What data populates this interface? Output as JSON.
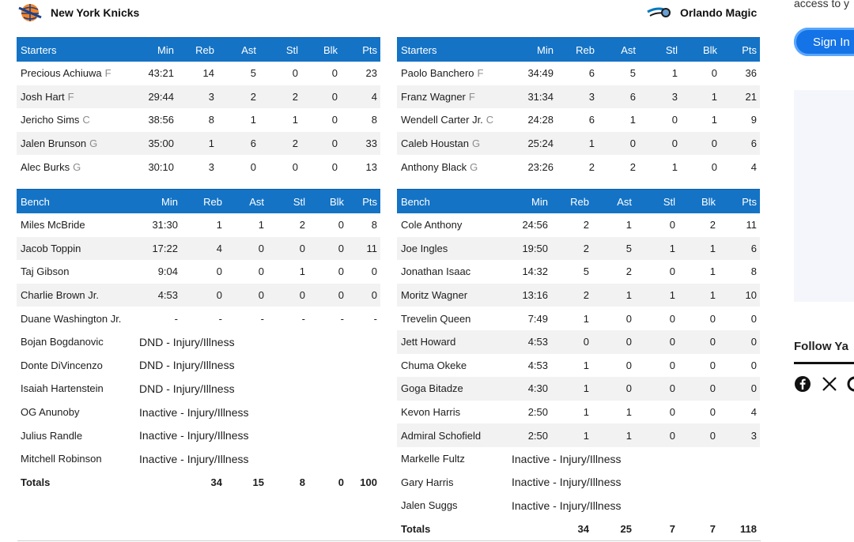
{
  "away": {
    "team": "New York Knicks",
    "starters_header": "Starters",
    "bench_header": "Bench",
    "columns": [
      "Min",
      "Reb",
      "Ast",
      "Stl",
      "Blk",
      "Pts"
    ],
    "starters": [
      {
        "name": "Precious Achiuwa",
        "pos": "F",
        "min": "43:21",
        "reb": "14",
        "ast": "5",
        "stl": "0",
        "blk": "0",
        "pts": "23"
      },
      {
        "name": "Josh Hart",
        "pos": "F",
        "min": "29:44",
        "reb": "3",
        "ast": "2",
        "stl": "2",
        "blk": "0",
        "pts": "4"
      },
      {
        "name": "Jericho Sims",
        "pos": "C",
        "min": "38:56",
        "reb": "8",
        "ast": "1",
        "stl": "1",
        "blk": "0",
        "pts": "8"
      },
      {
        "name": "Jalen Brunson",
        "pos": "G",
        "min": "35:00",
        "reb": "1",
        "ast": "6",
        "stl": "2",
        "blk": "0",
        "pts": "33"
      },
      {
        "name": "Alec Burks",
        "pos": "G",
        "min": "30:10",
        "reb": "3",
        "ast": "0",
        "stl": "0",
        "blk": "0",
        "pts": "13"
      }
    ],
    "bench": [
      {
        "name": "Miles McBride",
        "min": "31:30",
        "reb": "1",
        "ast": "1",
        "stl": "2",
        "blk": "0",
        "pts": "8"
      },
      {
        "name": "Jacob Toppin",
        "min": "17:22",
        "reb": "4",
        "ast": "0",
        "stl": "0",
        "blk": "0",
        "pts": "11"
      },
      {
        "name": "Taj Gibson",
        "min": "9:04",
        "reb": "0",
        "ast": "0",
        "stl": "1",
        "blk": "0",
        "pts": "0"
      },
      {
        "name": "Charlie Brown Jr.",
        "min": "4:53",
        "reb": "0",
        "ast": "0",
        "stl": "0",
        "blk": "0",
        "pts": "0"
      },
      {
        "name": "Duane Washington Jr.",
        "min": "-",
        "reb": "-",
        "ast": "-",
        "stl": "-",
        "blk": "-",
        "pts": "-"
      }
    ],
    "inactive": [
      {
        "name": "Bojan Bogdanovic",
        "status": "DND - Injury/Illness"
      },
      {
        "name": "Donte DiVincenzo",
        "status": "DND - Injury/Illness"
      },
      {
        "name": "Isaiah Hartenstein",
        "status": "DND - Injury/Illness"
      },
      {
        "name": "OG Anunoby",
        "status": "Inactive - Injury/Illness"
      },
      {
        "name": "Julius Randle",
        "status": "Inactive - Injury/Illness"
      },
      {
        "name": "Mitchell Robinson",
        "status": "Inactive - Injury/Illness"
      }
    ],
    "totals": {
      "label": "Totals",
      "reb": "34",
      "ast": "15",
      "stl": "8",
      "blk": "0",
      "pts": "100"
    }
  },
  "home": {
    "team": "Orlando Magic",
    "starters_header": "Starters",
    "bench_header": "Bench",
    "columns": [
      "Min",
      "Reb",
      "Ast",
      "Stl",
      "Blk",
      "Pts"
    ],
    "starters": [
      {
        "name": "Paolo Banchero",
        "pos": "F",
        "min": "34:49",
        "reb": "6",
        "ast": "5",
        "stl": "1",
        "blk": "0",
        "pts": "36"
      },
      {
        "name": "Franz Wagner",
        "pos": "F",
        "min": "31:34",
        "reb": "3",
        "ast": "6",
        "stl": "3",
        "blk": "1",
        "pts": "21"
      },
      {
        "name": "Wendell Carter Jr.",
        "pos": "C",
        "min": "24:28",
        "reb": "6",
        "ast": "1",
        "stl": "0",
        "blk": "1",
        "pts": "9"
      },
      {
        "name": "Caleb Houstan",
        "pos": "G",
        "min": "25:24",
        "reb": "1",
        "ast": "0",
        "stl": "0",
        "blk": "0",
        "pts": "6"
      },
      {
        "name": "Anthony Black",
        "pos": "G",
        "min": "23:26",
        "reb": "2",
        "ast": "2",
        "stl": "1",
        "blk": "0",
        "pts": "4"
      }
    ],
    "bench": [
      {
        "name": "Cole Anthony",
        "min": "24:56",
        "reb": "2",
        "ast": "1",
        "stl": "0",
        "blk": "2",
        "pts": "11"
      },
      {
        "name": "Joe Ingles",
        "min": "19:50",
        "reb": "2",
        "ast": "5",
        "stl": "1",
        "blk": "1",
        "pts": "6"
      },
      {
        "name": "Jonathan Isaac",
        "min": "14:32",
        "reb": "5",
        "ast": "2",
        "stl": "0",
        "blk": "1",
        "pts": "8"
      },
      {
        "name": "Moritz Wagner",
        "min": "13:16",
        "reb": "2",
        "ast": "1",
        "stl": "1",
        "blk": "1",
        "pts": "10"
      },
      {
        "name": "Trevelin Queen",
        "min": "7:49",
        "reb": "1",
        "ast": "0",
        "stl": "0",
        "blk": "0",
        "pts": "0"
      },
      {
        "name": "Jett Howard",
        "min": "4:53",
        "reb": "0",
        "ast": "0",
        "stl": "0",
        "blk": "0",
        "pts": "0"
      },
      {
        "name": "Chuma Okeke",
        "min": "4:53",
        "reb": "1",
        "ast": "0",
        "stl": "0",
        "blk": "0",
        "pts": "0"
      },
      {
        "name": "Goga Bitadze",
        "min": "4:30",
        "reb": "1",
        "ast": "0",
        "stl": "0",
        "blk": "0",
        "pts": "0"
      },
      {
        "name": "Kevon Harris",
        "min": "2:50",
        "reb": "1",
        "ast": "1",
        "stl": "0",
        "blk": "0",
        "pts": "4"
      },
      {
        "name": "Admiral Schofield",
        "min": "2:50",
        "reb": "1",
        "ast": "1",
        "stl": "0",
        "blk": "0",
        "pts": "3"
      }
    ],
    "inactive": [
      {
        "name": "Markelle Fultz",
        "status": "Inactive - Injury/Illness"
      },
      {
        "name": "Gary Harris",
        "status": "Inactive - Injury/Illness"
      },
      {
        "name": "Jalen Suggs",
        "status": "Inactive - Injury/Illness"
      }
    ],
    "totals": {
      "label": "Totals",
      "reb": "34",
      "ast": "25",
      "stl": "7",
      "blk": "7",
      "pts": "118"
    }
  },
  "sidebar": {
    "access_text": "access to y",
    "signin_label": "Sign In",
    "follow_text": "Follow Ya"
  },
  "colors": {
    "header_bg": "#1473c5",
    "alt_row": "#f2f2f2",
    "signin": "#1473e6"
  },
  "icons": [
    "knicks-logo-icon",
    "magic-logo-icon",
    "facebook-icon",
    "x-icon"
  ]
}
